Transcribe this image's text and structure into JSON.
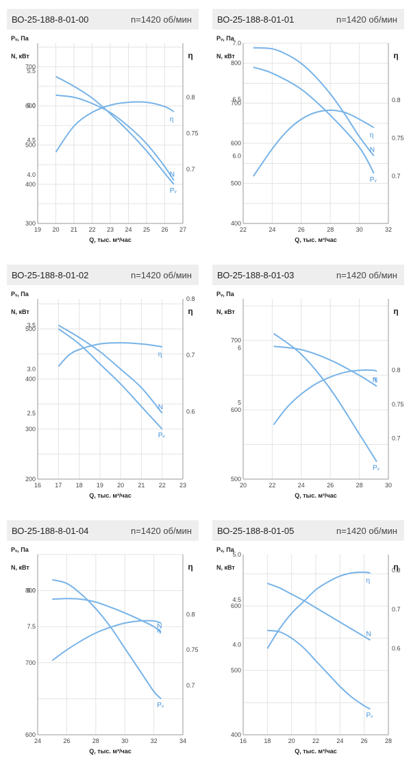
{
  "panels": [
    {
      "model": "ВО-25-188-8-01-00",
      "speed": "n=1420 об/мин",
      "x_label": "Q, тыс. м³/час",
      "n_label": "N, кВт",
      "p_label": "Pᵥ, Па",
      "eta_symbol": "η",
      "x_ticks": [
        19,
        20,
        21,
        22,
        23,
        24,
        25,
        26,
        27
      ],
      "n_ticks": [
        "5.5",
        "5.0",
        "4.5",
        "4.0"
      ],
      "p_ticks": [
        "700",
        "600",
        "500",
        "400",
        "300"
      ],
      "eta_ticks": [
        "0.8",
        "0.75",
        "0.7"
      ],
      "curve_labels": {
        "N": "N",
        "eta": "η",
        "P": "Pᵥ"
      },
      "chart_data": {
        "type": "line",
        "xlim": [
          19,
          27
        ],
        "n_range": [
          3.3,
          5.9
        ],
        "p_range": [
          300,
          760
        ],
        "eta_range": [
          0.625,
          0.875
        ],
        "series": [
          {
            "name": "N",
            "x": [
              20,
              21,
              22,
              23,
              24,
              25,
              26,
              26.5
            ],
            "values": [
              5.15,
              5.12,
              5.03,
              4.9,
              4.7,
              4.45,
              4.12,
              3.92
            ]
          },
          {
            "name": "η",
            "x": [
              20,
              21,
              22,
              23,
              24,
              25,
              26,
              26.5
            ],
            "values": [
              0.724,
              0.76,
              0.779,
              0.789,
              0.793,
              0.793,
              0.787,
              0.78
            ]
          },
          {
            "name": "Pᵥ",
            "x": [
              20,
              21,
              22,
              23,
              24,
              25,
              26,
              26.5
            ],
            "values": [
              675,
              650,
              620,
              580,
              535,
              485,
              428,
              400
            ]
          }
        ]
      }
    },
    {
      "model": "ВО-25-188-8-01-01",
      "speed": "n=1420 об/мин",
      "x_label": "Q, тыс. м³/час",
      "n_label": "N, кВт",
      "p_label": "Pᵥ, Па",
      "eta_symbol": "η",
      "x_ticks": [
        22,
        24,
        26,
        28,
        30,
        32
      ],
      "n_ticks": [
        "7.0",
        "6.5",
        "6.0"
      ],
      "p_ticks": [
        "800",
        "700",
        "600",
        "500",
        "400"
      ],
      "eta_ticks": [
        "0.8",
        "0.75",
        "0.7"
      ],
      "curve_labels": {
        "N": "N",
        "eta": "η",
        "P": "Pᵥ"
      },
      "chart_data": {
        "type": "line",
        "xlim": [
          22,
          32
        ],
        "n_range": [
          5.4,
          7.0
        ],
        "p_range": [
          400,
          850
        ],
        "eta_range": [
          0.638,
          0.875
        ],
        "series": [
          {
            "name": "N",
            "x": [
              22.7,
              24,
              25,
              26,
              27,
              28,
              29,
              30,
              31
            ],
            "values": [
              6.96,
              6.95,
              6.9,
              6.82,
              6.7,
              6.55,
              6.37,
              6.17,
              6.0
            ]
          },
          {
            "name": "η",
            "x": [
              22.7,
              24,
              25,
              26,
              27,
              28,
              29,
              30,
              31
            ],
            "values": [
              0.7,
              0.736,
              0.759,
              0.775,
              0.784,
              0.787,
              0.784,
              0.775,
              0.764
            ]
          },
          {
            "name": "Pᵥ",
            "x": [
              22.7,
              24,
              26,
              28,
              30,
              31
            ],
            "values": [
              790,
              775,
              735,
              670,
              590,
              525
            ]
          }
        ]
      }
    },
    {
      "model": "ВО-25-188-8-01-02",
      "speed": "n=1420 об/мин",
      "x_label": "Q, тыс. м³/час",
      "n_label": "N, кВт",
      "p_label": "Pᵥ, Па",
      "eta_symbol": "η",
      "x_ticks": [
        16,
        17,
        18,
        19,
        20,
        21,
        22,
        23
      ],
      "n_ticks": [
        "3.5",
        "3.0",
        "2.5"
      ],
      "p_ticks": [
        "500",
        "400",
        "300",
        "200"
      ],
      "eta_ticks": [
        "0.8",
        "0.7",
        "0.6"
      ],
      "curve_labels": {
        "N": "N",
        "eta": "η",
        "P": "Pᵥ"
      },
      "chart_data": {
        "type": "line",
        "xlim": [
          16,
          23
        ],
        "n_range": [
          1.75,
          3.8
        ],
        "p_range": [
          200,
          560
        ],
        "eta_range": [
          0.48,
          0.8
        ],
        "series": [
          {
            "name": "N",
            "x": [
              17,
              18,
              19,
              20,
              21,
              22
            ],
            "values": [
              3.5,
              3.36,
              3.2,
              3.0,
              2.79,
              2.5
            ]
          },
          {
            "name": "η",
            "x": [
              17,
              17.5,
              18,
              19,
              20,
              21,
              22
            ],
            "values": [
              0.68,
              0.7,
              0.71,
              0.72,
              0.722,
              0.72,
              0.715
            ]
          },
          {
            "name": "Pᵥ",
            "x": [
              17,
              18,
              19,
              20,
              21,
              22
            ],
            "values": [
              500,
              470,
              430,
              390,
              345,
              300
            ]
          }
        ]
      }
    },
    {
      "model": "ВО-25-188-8-01-03",
      "speed": "n=1420 об/мин",
      "x_label": "Q, тыс. м³/час",
      "n_label": "N, кВт",
      "p_label": "Pᵥ, Па",
      "eta_symbol": "η",
      "x_ticks": [
        20,
        22,
        24,
        26,
        28,
        30
      ],
      "n_ticks": [
        "6",
        "5"
      ],
      "p_ticks": [
        "700",
        "600",
        "500"
      ],
      "eta_ticks": [
        "0.8",
        "0.75",
        "0.7"
      ],
      "curve_labels": {
        "N": "N",
        "eta": "η",
        "P": "Pᵥ"
      },
      "chart_data": {
        "type": "line",
        "xlim": [
          20,
          30
        ],
        "n_range": [
          3.6,
          6.9
        ],
        "p_range": [
          500,
          760
        ],
        "eta_range": [
          0.64,
          0.905
        ],
        "series": [
          {
            "name": "N",
            "x": [
              22.1,
              24,
              26,
              28,
              29.2
            ],
            "values": [
              6.03,
              5.97,
              5.78,
              5.5,
              5.3
            ]
          },
          {
            "name": "η",
            "x": [
              22.1,
              23,
              24,
              25,
              26,
              27,
              28,
              29,
              29.2
            ],
            "values": [
              0.72,
              0.745,
              0.765,
              0.78,
              0.79,
              0.797,
              0.8,
              0.8,
              0.798
            ]
          },
          {
            "name": "Pᵥ",
            "x": [
              22.1,
              24,
              26,
              28,
              29.2
            ],
            "values": [
              710,
              680,
              630,
              565,
              525
            ]
          }
        ]
      }
    },
    {
      "model": "ВО-25-188-8-01-04",
      "speed": "n=1420 об/мин",
      "x_label": "Q, тыс. м³/час",
      "n_label": "N, кВт",
      "p_label": "Pᵥ, Па",
      "eta_symbol": "η",
      "x_ticks": [
        24,
        26,
        28,
        30,
        32,
        34
      ],
      "n_ticks": [
        "8.0",
        "7.5"
      ],
      "p_ticks": [
        "800",
        "700",
        "600"
      ],
      "eta_ticks": [
        "0.8",
        "0.75",
        "0.7"
      ],
      "curve_labels": {
        "N": "N",
        "eta": "η",
        "P": "Pᵥ"
      },
      "chart_data": {
        "type": "line",
        "xlim": [
          24,
          34
        ],
        "n_range": [
          6.0,
          8.5
        ],
        "p_range": [
          600,
          850
        ],
        "eta_range": [
          0.63,
          0.885
        ],
        "series": [
          {
            "name": "N",
            "x": [
              25,
              26,
              27,
              28,
              29,
              30,
              31,
              32,
              32.5
            ],
            "values": [
              7.88,
              7.89,
              7.88,
              7.84,
              7.77,
              7.69,
              7.6,
              7.5,
              7.42
            ]
          },
          {
            "name": "η",
            "x": [
              25,
              26,
              27,
              28,
              29,
              30,
              31,
              32,
              32.5
            ],
            "values": [
              0.735,
              0.75,
              0.763,
              0.774,
              0.782,
              0.788,
              0.791,
              0.791,
              0.788
            ]
          },
          {
            "name": "Pᵥ",
            "x": [
              25,
              26,
              27,
              28,
              29,
              30,
              31,
              32,
              32.5
            ],
            "values": [
              815,
              810,
              795,
              775,
              750,
              720,
              690,
              660,
              650
            ]
          }
        ]
      }
    },
    {
      "model": "ВО-25-188-8-01-05",
      "speed": "n=1420 об/мин",
      "x_label": "Q, тыс. м³/час",
      "n_label": "N, кВт",
      "p_label": "Pᵥ, Па",
      "eta_symbol": "η",
      "x_ticks": [
        16,
        18,
        20,
        22,
        24,
        26,
        28
      ],
      "n_ticks": [
        "5.0",
        "4.5",
        "4.0"
      ],
      "p_ticks": [
        "600",
        "500",
        "400"
      ],
      "eta_ticks": [
        "0.8",
        "0.7",
        "0.6"
      ],
      "curve_labels": {
        "N": "N",
        "eta": "η",
        "P": "Pᵥ"
      },
      "chart_data": {
        "type": "line",
        "xlim": [
          16,
          28
        ],
        "n_range": [
          3.0,
          5.0
        ],
        "p_range": [
          400,
          680
        ],
        "eta_range": [
          0.38,
          0.84
        ],
        "series": [
          {
            "name": "N",
            "x": [
              18,
              19,
              20,
              21,
              22,
              23,
              24,
              25,
              26,
              26.5
            ],
            "values": [
              4.68,
              4.63,
              4.56,
              4.49,
              4.41,
              4.33,
              4.25,
              4.17,
              4.09,
              4.05
            ]
          },
          {
            "name": "η",
            "x": [
              18,
              19,
              20,
              21,
              22,
              23,
              24,
              25,
              26,
              26.5
            ],
            "values": [
              0.6,
              0.65,
              0.69,
              0.72,
              0.75,
              0.77,
              0.785,
              0.793,
              0.795,
              0.793
            ]
          },
          {
            "name": "Pᵥ",
            "x": [
              18,
              19,
              20,
              21,
              22,
              23,
              24,
              25,
              26,
              26.5
            ],
            "values": [
              562,
              560,
              550,
              535,
              515,
              495,
              475,
              458,
              445,
              440
            ]
          }
        ]
      }
    }
  ]
}
